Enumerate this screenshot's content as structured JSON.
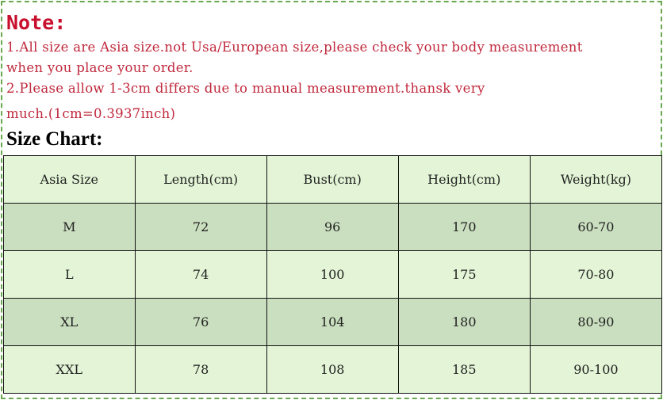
{
  "note": {
    "title": "Note:",
    "lines": [
      "1.All size are Asia size.not Usa/European size,please check your body measurement",
      "when you place your order.",
      "2.Please allow 1-3cm differs due to manual measurement.thansk very",
      "much.(1cm=0.3937inch)"
    ]
  },
  "size_chart": {
    "title": "Size Chart:",
    "headers": [
      "Asia Size",
      "Length(cm)",
      "Bust(cm)",
      "Height(cm)",
      "Weight(kg)"
    ],
    "rows": [
      [
        "M",
        "72",
        "96",
        "170",
        "60-70"
      ],
      [
        "L",
        "74",
        "100",
        "175",
        "70-80"
      ],
      [
        "XL",
        "76",
        "104",
        "180",
        "80-90"
      ],
      [
        "XXL",
        "78",
        "108",
        "185",
        "90-100"
      ]
    ]
  },
  "colors": {
    "note_text": "#c0283c",
    "row_light": "#e3f5d6",
    "row_dark": "#cadfbf",
    "border_dashed": "#6aa84f"
  }
}
